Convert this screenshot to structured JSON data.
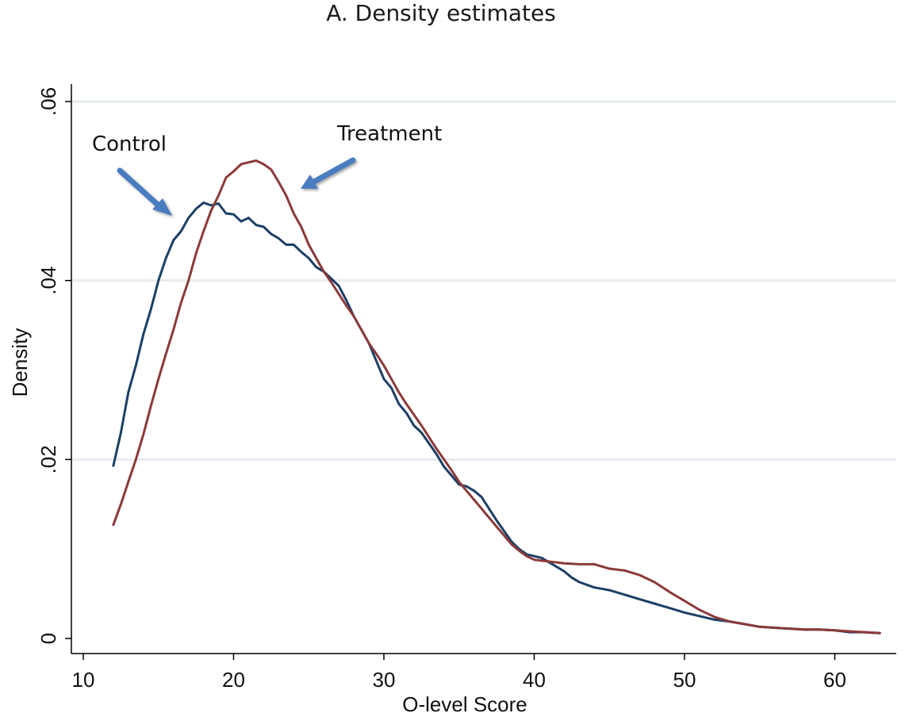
{
  "chart_data": {
    "type": "line",
    "title": "A. Density estimates",
    "xlabel": "O-level Score",
    "ylabel": "Density",
    "xlim": [
      9,
      64
    ],
    "ylim": [
      -0.001,
      0.0615
    ],
    "xticks": [
      10,
      20,
      30,
      40,
      50,
      60
    ],
    "xtick_labels": [
      "10",
      "20",
      "30",
      "40",
      "50",
      "60"
    ],
    "yticks": [
      0,
      0.02,
      0.04,
      0.06
    ],
    "ytick_labels": [
      "0",
      ".02",
      ".04",
      ".06"
    ],
    "grid": "horizontal",
    "series": [
      {
        "name": "Control",
        "color": "#1c3f66",
        "points": [
          [
            12,
            0.0193
          ],
          [
            12.5,
            0.023
          ],
          [
            13,
            0.0275
          ],
          [
            13.5,
            0.0305
          ],
          [
            14,
            0.034
          ],
          [
            14.5,
            0.0368
          ],
          [
            15,
            0.04
          ],
          [
            15.5,
            0.0425
          ],
          [
            16,
            0.0445
          ],
          [
            16.5,
            0.0455
          ],
          [
            17,
            0.047
          ],
          [
            17.5,
            0.048
          ],
          [
            18,
            0.0487
          ],
          [
            18.5,
            0.0484
          ],
          [
            19,
            0.0486
          ],
          [
            19.5,
            0.0475
          ],
          [
            20,
            0.0474
          ],
          [
            20.5,
            0.0466
          ],
          [
            21,
            0.047
          ],
          [
            21.5,
            0.0462
          ],
          [
            22,
            0.046
          ],
          [
            22.5,
            0.0452
          ],
          [
            23,
            0.0447
          ],
          [
            23.5,
            0.044
          ],
          [
            24,
            0.044
          ],
          [
            24.5,
            0.0432
          ],
          [
            25,
            0.0425
          ],
          [
            25.5,
            0.0415
          ],
          [
            26,
            0.041
          ],
          [
            26.5,
            0.0402
          ],
          [
            27,
            0.0394
          ],
          [
            27.5,
            0.0378
          ],
          [
            28,
            0.036
          ],
          [
            28.5,
            0.0345
          ],
          [
            29,
            0.033
          ],
          [
            29.5,
            0.031
          ],
          [
            30,
            0.029
          ],
          [
            30.5,
            0.028
          ],
          [
            31,
            0.0262
          ],
          [
            31.5,
            0.0252
          ],
          [
            32,
            0.0238
          ],
          [
            32.5,
            0.023
          ],
          [
            33,
            0.0218
          ],
          [
            33.5,
            0.0206
          ],
          [
            34,
            0.0192
          ],
          [
            34.5,
            0.0182
          ],
          [
            35,
            0.0172
          ],
          [
            35.5,
            0.017
          ],
          [
            36,
            0.0165
          ],
          [
            36.5,
            0.0158
          ],
          [
            37,
            0.0145
          ],
          [
            37.5,
            0.0132
          ],
          [
            38,
            0.012
          ],
          [
            38.5,
            0.0108
          ],
          [
            39,
            0.01
          ],
          [
            39.5,
            0.0094
          ],
          [
            40,
            0.0092
          ],
          [
            40.5,
            0.009
          ],
          [
            41,
            0.0085
          ],
          [
            41.5,
            0.008
          ],
          [
            42,
            0.0075
          ],
          [
            42.5,
            0.0068
          ],
          [
            43,
            0.0063
          ],
          [
            43.5,
            0.006
          ],
          [
            44,
            0.0057
          ],
          [
            45,
            0.0054
          ],
          [
            46,
            0.0049
          ],
          [
            47,
            0.0044
          ],
          [
            48,
            0.0039
          ],
          [
            49,
            0.0034
          ],
          [
            50,
            0.0029
          ],
          [
            51,
            0.0025
          ],
          [
            52,
            0.0021
          ],
          [
            53,
            0.0019
          ],
          [
            54,
            0.0016
          ],
          [
            55,
            0.0013
          ],
          [
            56,
            0.0012
          ],
          [
            57,
            0.0011
          ],
          [
            58,
            0.001
          ],
          [
            59,
            0.001
          ],
          [
            60,
            0.0009
          ],
          [
            61,
            0.0007
          ],
          [
            62,
            0.0007
          ],
          [
            63,
            0.0006
          ]
        ]
      },
      {
        "name": "Treatment",
        "color": "#8b3a3a",
        "points": [
          [
            12,
            0.0127
          ],
          [
            12.5,
            0.015
          ],
          [
            13,
            0.0175
          ],
          [
            13.5,
            0.02
          ],
          [
            14,
            0.0228
          ],
          [
            14.5,
            0.026
          ],
          [
            15,
            0.029
          ],
          [
            15.5,
            0.0318
          ],
          [
            16,
            0.0345
          ],
          [
            16.5,
            0.0375
          ],
          [
            17,
            0.04
          ],
          [
            17.5,
            0.043
          ],
          [
            18,
            0.0455
          ],
          [
            18.5,
            0.0478
          ],
          [
            19,
            0.0495
          ],
          [
            19.5,
            0.0515
          ],
          [
            20,
            0.0522
          ],
          [
            20.5,
            0.053
          ],
          [
            21,
            0.0532
          ],
          [
            21.5,
            0.0534
          ],
          [
            22,
            0.053
          ],
          [
            22.5,
            0.0524
          ],
          [
            23,
            0.051
          ],
          [
            23.5,
            0.0495
          ],
          [
            24,
            0.0475
          ],
          [
            24.5,
            0.046
          ],
          [
            25,
            0.044
          ],
          [
            25.5,
            0.0425
          ],
          [
            26,
            0.041
          ],
          [
            26.5,
            0.0398
          ],
          [
            27,
            0.0385
          ],
          [
            27.5,
            0.0372
          ],
          [
            28,
            0.036
          ],
          [
            28.5,
            0.0345
          ],
          [
            29,
            0.033
          ],
          [
            29.5,
            0.0318
          ],
          [
            30,
            0.0305
          ],
          [
            30.5,
            0.029
          ],
          [
            31,
            0.0275
          ],
          [
            31.5,
            0.0262
          ],
          [
            32,
            0.025
          ],
          [
            32.5,
            0.0238
          ],
          [
            33,
            0.0225
          ],
          [
            33.5,
            0.0212
          ],
          [
            34,
            0.02
          ],
          [
            34.5,
            0.0188
          ],
          [
            35,
            0.0175
          ],
          [
            35.5,
            0.0165
          ],
          [
            36,
            0.0155
          ],
          [
            36.5,
            0.0145
          ],
          [
            37,
            0.0135
          ],
          [
            37.5,
            0.0125
          ],
          [
            38,
            0.0115
          ],
          [
            38.5,
            0.0105
          ],
          [
            39,
            0.0098
          ],
          [
            39.5,
            0.0092
          ],
          [
            40,
            0.0088
          ],
          [
            41,
            0.0086
          ],
          [
            42,
            0.0084
          ],
          [
            43,
            0.0083
          ],
          [
            44,
            0.0083
          ],
          [
            45,
            0.0078
          ],
          [
            46,
            0.0076
          ],
          [
            47,
            0.0071
          ],
          [
            48,
            0.0063
          ],
          [
            49,
            0.0052
          ],
          [
            50,
            0.0042
          ],
          [
            51,
            0.0032
          ],
          [
            52,
            0.0024
          ],
          [
            53,
            0.0019
          ],
          [
            54,
            0.0016
          ],
          [
            55,
            0.0013
          ],
          [
            56,
            0.0012
          ],
          [
            57,
            0.0011
          ],
          [
            58,
            0.001
          ],
          [
            59,
            0.001
          ],
          [
            60,
            0.0009
          ],
          [
            61,
            0.0008
          ],
          [
            62,
            0.0007
          ],
          [
            63,
            0.0006
          ]
        ]
      }
    ],
    "annotations": [
      {
        "text": "Control",
        "points_to_series": "Control",
        "arrow_color": "#4a7dbf"
      },
      {
        "text": "Treatment",
        "points_to_series": "Treatment",
        "arrow_color": "#4a7dbf"
      }
    ]
  }
}
